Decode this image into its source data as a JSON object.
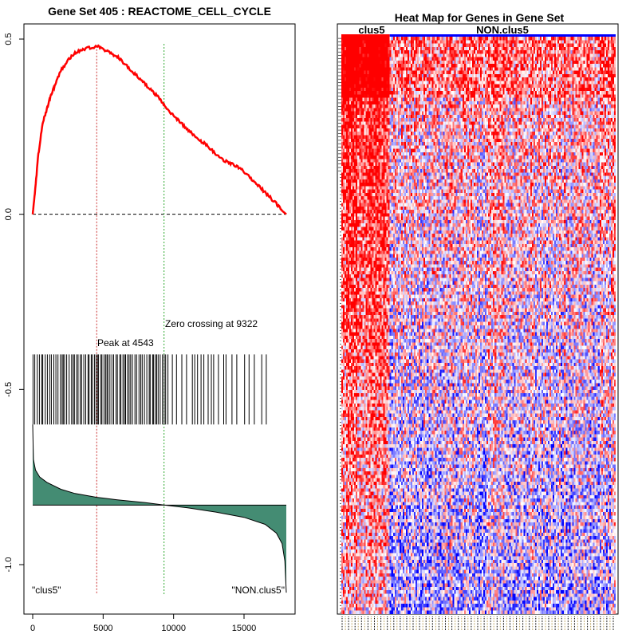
{
  "left_title": "Gene Set  405 : REACTOME_CELL_CYCLE",
  "right_title": "Heat Map for Genes in Gene Set",
  "annotations": {
    "peak": "Peak at 4543",
    "zero_crossing": "Zero crossing at 9322",
    "left_class": "\"clus5\"",
    "right_class": "\"NON.clus5\""
  },
  "heatmap_groups": {
    "left": "clus5",
    "right": "NON.clus5"
  },
  "colors": {
    "es_curve": "#ff0000",
    "peak_line": "#cc3333",
    "zero_line": "#33aa33",
    "rank_fill": "#448c73",
    "hm_red": "#ff0000",
    "hm_blue": "#0000ff",
    "bar_clus5": "#ff0000",
    "bar_non": "#0000ff"
  },
  "chart_data": [
    {
      "type": "line",
      "title": "Gene Set  405 : REACTOME_CELL_CYCLE",
      "x_ticks": [
        "0",
        "5000",
        "10000",
        "15000"
      ],
      "y_ticks": [
        "0.5",
        "0.0",
        "-0.5",
        "-1.0"
      ],
      "xlim": [
        0,
        18000
      ],
      "ylim": [
        -1.1,
        0.5
      ],
      "es_profile": {
        "x": [
          0,
          150,
          400,
          700,
          1000,
          1300,
          1600,
          2000,
          2500,
          3000,
          3500,
          4000,
          4543,
          5000,
          5500,
          6000,
          6500,
          7000,
          7500,
          8000,
          8500,
          9000,
          9322,
          9800,
          10300,
          10800,
          11300,
          11800,
          12300,
          12800,
          13300,
          13800,
          14300,
          14800,
          15300,
          15800,
          16300,
          16800,
          17300,
          17700,
          18000
        ],
        "y": [
          0.0,
          0.06,
          0.17,
          0.26,
          0.3,
          0.34,
          0.37,
          0.41,
          0.44,
          0.46,
          0.47,
          0.475,
          0.48,
          0.47,
          0.46,
          0.45,
          0.43,
          0.41,
          0.39,
          0.37,
          0.35,
          0.33,
          0.31,
          0.29,
          0.27,
          0.25,
          0.23,
          0.21,
          0.2,
          0.18,
          0.16,
          0.15,
          0.14,
          0.13,
          0.11,
          0.09,
          0.07,
          0.05,
          0.03,
          0.01,
          0.0
        ]
      },
      "zero_baseline": 0.0,
      "peak_x": 4543,
      "zero_crossing_x": 9322,
      "hit_band_y": [
        -0.4,
        -0.6
      ],
      "hit_x_extent": [
        0,
        17300
      ],
      "rank_metric": {
        "x": [
          0,
          50,
          200,
          500,
          1000,
          2000,
          3000,
          4543,
          6000,
          8000,
          9322,
          11000,
          13000,
          15000,
          16500,
          17300,
          17700,
          17900,
          18000
        ],
        "y": [
          -0.6,
          -0.7,
          -0.73,
          -0.75,
          -0.765,
          -0.785,
          -0.797,
          -0.808,
          -0.815,
          -0.823,
          -0.83,
          -0.838,
          -0.85,
          -0.865,
          -0.885,
          -0.91,
          -0.94,
          -0.99,
          -1.08
        ],
        "baseline": -0.83
      }
    },
    {
      "type": "heatmap",
      "title": "Heat Map for Genes in Gene Set",
      "groups": [
        "clus5",
        "NON.clus5"
      ],
      "n_rows": 170,
      "n_cols": 170,
      "n_cols_group1": 30,
      "color_scale": [
        "blue",
        "white",
        "red"
      ]
    }
  ]
}
